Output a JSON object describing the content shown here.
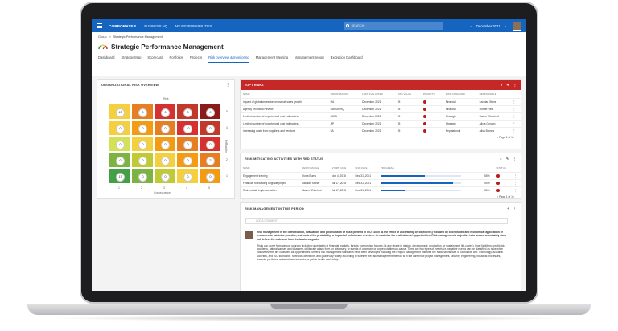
{
  "topbar": {
    "logo": "CORPORATER",
    "nav": [
      "BUSINESS HQ",
      "MY RESPONSIBILITIES"
    ],
    "search_placeholder": "SEARCH",
    "period": "December 2021"
  },
  "breadcrumb": [
    "Group",
    ">",
    "Strategic Performance Management"
  ],
  "page_title": "Strategic Performance Management",
  "tabs": [
    "Dashboard",
    "Strategy Map",
    "Scorecard",
    "Portfolios",
    "Projects",
    "Risk overview & monitoring",
    "Management Meeting",
    "Management report",
    "Exception Dashboard"
  ],
  "active_tab": 5,
  "risk_overview": {
    "title": "ORGANIZATIONAL RISK OVERVIEW",
    "risk_label": "Risk",
    "y_axis_label": "Probability",
    "x_axis_label": "Consequence",
    "row_ticks": [
      "5",
      "4",
      "3",
      "2",
      "1"
    ],
    "col_ticks": [
      "1",
      "2",
      "3",
      "4",
      "5"
    ],
    "grid": [
      [
        "#f4d03f",
        "#e67e22",
        "#d63031",
        "#c0392b",
        "#8b1a1a"
      ],
      [
        "#f4d03f",
        "#f39c12",
        "#e67e22",
        "#d63031",
        "#c0392b"
      ],
      [
        "#d4e157",
        "#f4d03f",
        "#f39c12",
        "#e67e22",
        "#d63031"
      ],
      [
        "#7cb342",
        "#c0ca33",
        "#f4d03f",
        "#f39c12",
        "#e67e22"
      ],
      [
        "#43a047",
        "#7cb342",
        "#c0ca33",
        "#f4d03f",
        "#f39c12"
      ]
    ],
    "dots": [
      [
        "13",
        "0",
        "0",
        "0",
        "0"
      ],
      [
        "0",
        "0",
        "0",
        "10",
        "0"
      ],
      [
        "0",
        "0",
        "0",
        "0",
        "0"
      ],
      [
        "0",
        "0",
        "0",
        "0",
        "2"
      ],
      [
        "17",
        "0",
        "0",
        "0",
        "0"
      ]
    ]
  },
  "top5": {
    "title": "TOP 5 RISKS",
    "columns": [
      "NAME",
      "ORGANIZATION",
      "LAST EVALUATED",
      "RISK VALUE",
      "PRIORITY",
      "RISK CATEGORY",
      "RESPONSIBLE"
    ],
    "rows": [
      [
        "Impact of global recession on overall sales growth",
        "NA",
        "December 2021",
        "25",
        "Financial",
        "Lachlan Stone"
      ],
      [
        "Agency Technical Review",
        "London HQ",
        "December 2021",
        "25",
        "Financial",
        "Homer Reid"
      ],
      [
        "Limited number of experienced cost estimators.",
        "LBC1",
        "December 2021",
        "25",
        "Strategic",
        "Hasim Whitehed"
      ],
      [
        "Limited number of experienced cost estimators.",
        "AP",
        "December 2021",
        "25",
        "Strategic",
        "Alicia Gordon"
      ],
      [
        "Increasing costs from suppliers and vendors",
        "LA",
        "December 2021",
        "25",
        "Reputational",
        "Alisa Barnes"
      ]
    ],
    "pager": "Page 1 of 1"
  },
  "mitigating": {
    "title": "RISK MITIGATING ACTIVITIES WITH RED STATUS",
    "columns": [
      "NAME",
      "RESPONSIBLE",
      "START DATE",
      "END DATE",
      "PROGRESS",
      "STATUS"
    ],
    "rows": [
      {
        "name": "Engagement training",
        "resp": "Fiona Burns",
        "start": "Nov 4, 2018",
        "end": "Dec 31, 2021",
        "progress": 0.55,
        "pct": "55%"
      },
      {
        "name": "Financial forecasting upgrade project",
        "resp": "Lachlan Stone",
        "start": "Jul 17, 2018",
        "end": "Dec 31, 2021",
        "progress": 0.9,
        "pct": "90%"
      },
      {
        "name": "Risk module implementation",
        "resp": "Hasim Whitehed",
        "start": "Jul 17, 2018",
        "end": "Dec 31, 2021",
        "progress": 0.3,
        "pct": "30%"
      }
    ],
    "pager": "Page 1 of 1"
  },
  "period_mgmt": {
    "title": "RISK MANAGEMENT IN THIS PERIOD",
    "comment_placeholder": "ADD A COMMENT",
    "bold_text": "Risk management is the identification, evaluation, and prioritization of risks (defined in ISO 31000 as the effect of uncertainty on objectives) followed by coordinated and economical application of resources to minimize, monitor, and control the probability or impact of unfortunate events or to maximize the realization of opportunities. Risk management's objective is to assure uncertainty does not deflect the endeavor from the business goals.",
    "body_text": "Risks can come from various sources including uncertainty in financial markets, threats from project failures (at any phase in design, development, production, or sustainment life-cycles), legal liabilities, credit risk, accidents, natural causes and disasters, deliberate attack from an adversary, or events of uncertain or unpredictable root-cause. There are two types of events i.e. negative events can be classified as risks while positive events are classified as opportunities. Several risk management standards have been developed including the Project Management Institute, the National Institute of Standards and Technology, actuarial societies, and ISO standards. Methods, definitions and goals vary widely according to whether the risk management method is in the context of project management, security, engineering, industrial processes, financial portfolios, actuarial assessments, or public health and safety."
  }
}
